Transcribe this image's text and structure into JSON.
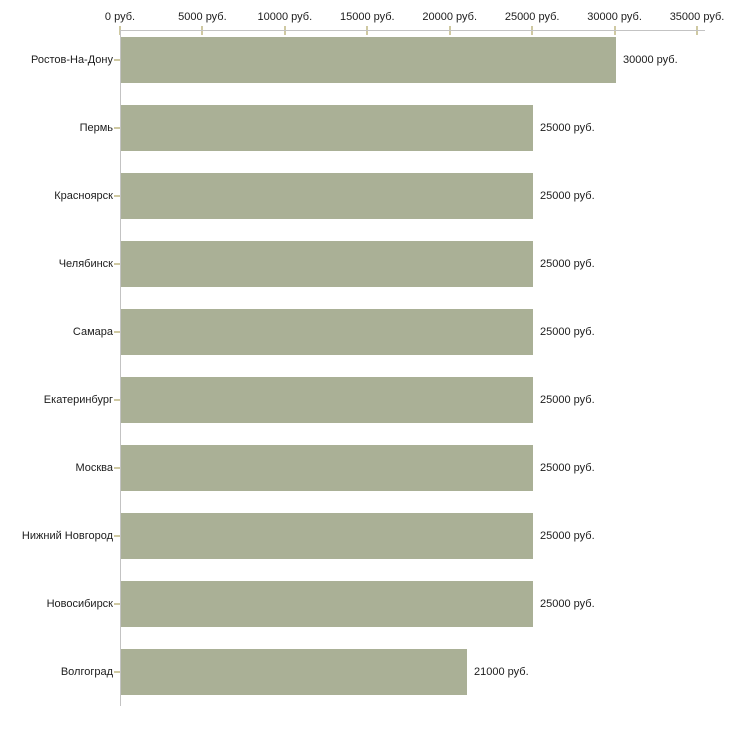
{
  "chart_data": {
    "type": "bar",
    "orientation": "horizontal",
    "title": "",
    "xlabel": "",
    "ylabel": "",
    "unit": "руб.",
    "categories": [
      "Ростов-На-Дону",
      "Пермь",
      "Красноярск",
      "Челябинск",
      "Самара",
      "Екатеринбург",
      "Москва",
      "Нижний Новгород",
      "Новосибирск",
      "Волгоград"
    ],
    "values": [
      30000,
      25000,
      25000,
      25000,
      25000,
      25000,
      25000,
      25000,
      25000,
      21000
    ],
    "value_labels": [
      "30000 руб.",
      "25000 руб.",
      "25000 руб.",
      "25000 руб.",
      "25000 руб.",
      "25000 руб.",
      "25000 руб.",
      "25000 руб.",
      "25000 руб.",
      "21000 руб."
    ],
    "x_tick_values": [
      0,
      5000,
      10000,
      15000,
      20000,
      25000,
      30000,
      35000
    ],
    "x_ticks": [
      "0 руб.",
      "5000 руб.",
      "10000 руб.",
      "15000 руб.",
      "20000 руб.",
      "25000 руб.",
      "30000 руб.",
      "35000 руб."
    ],
    "xlim": [
      0,
      35000
    ],
    "grid": false,
    "legend_position": "none",
    "colors": {
      "bar_fill": "#aab096",
      "axis_line": "#c3c3c3",
      "tick_mark": "#cfc9a2",
      "text": "#1c1c1c",
      "background": "#ffffff"
    }
  }
}
